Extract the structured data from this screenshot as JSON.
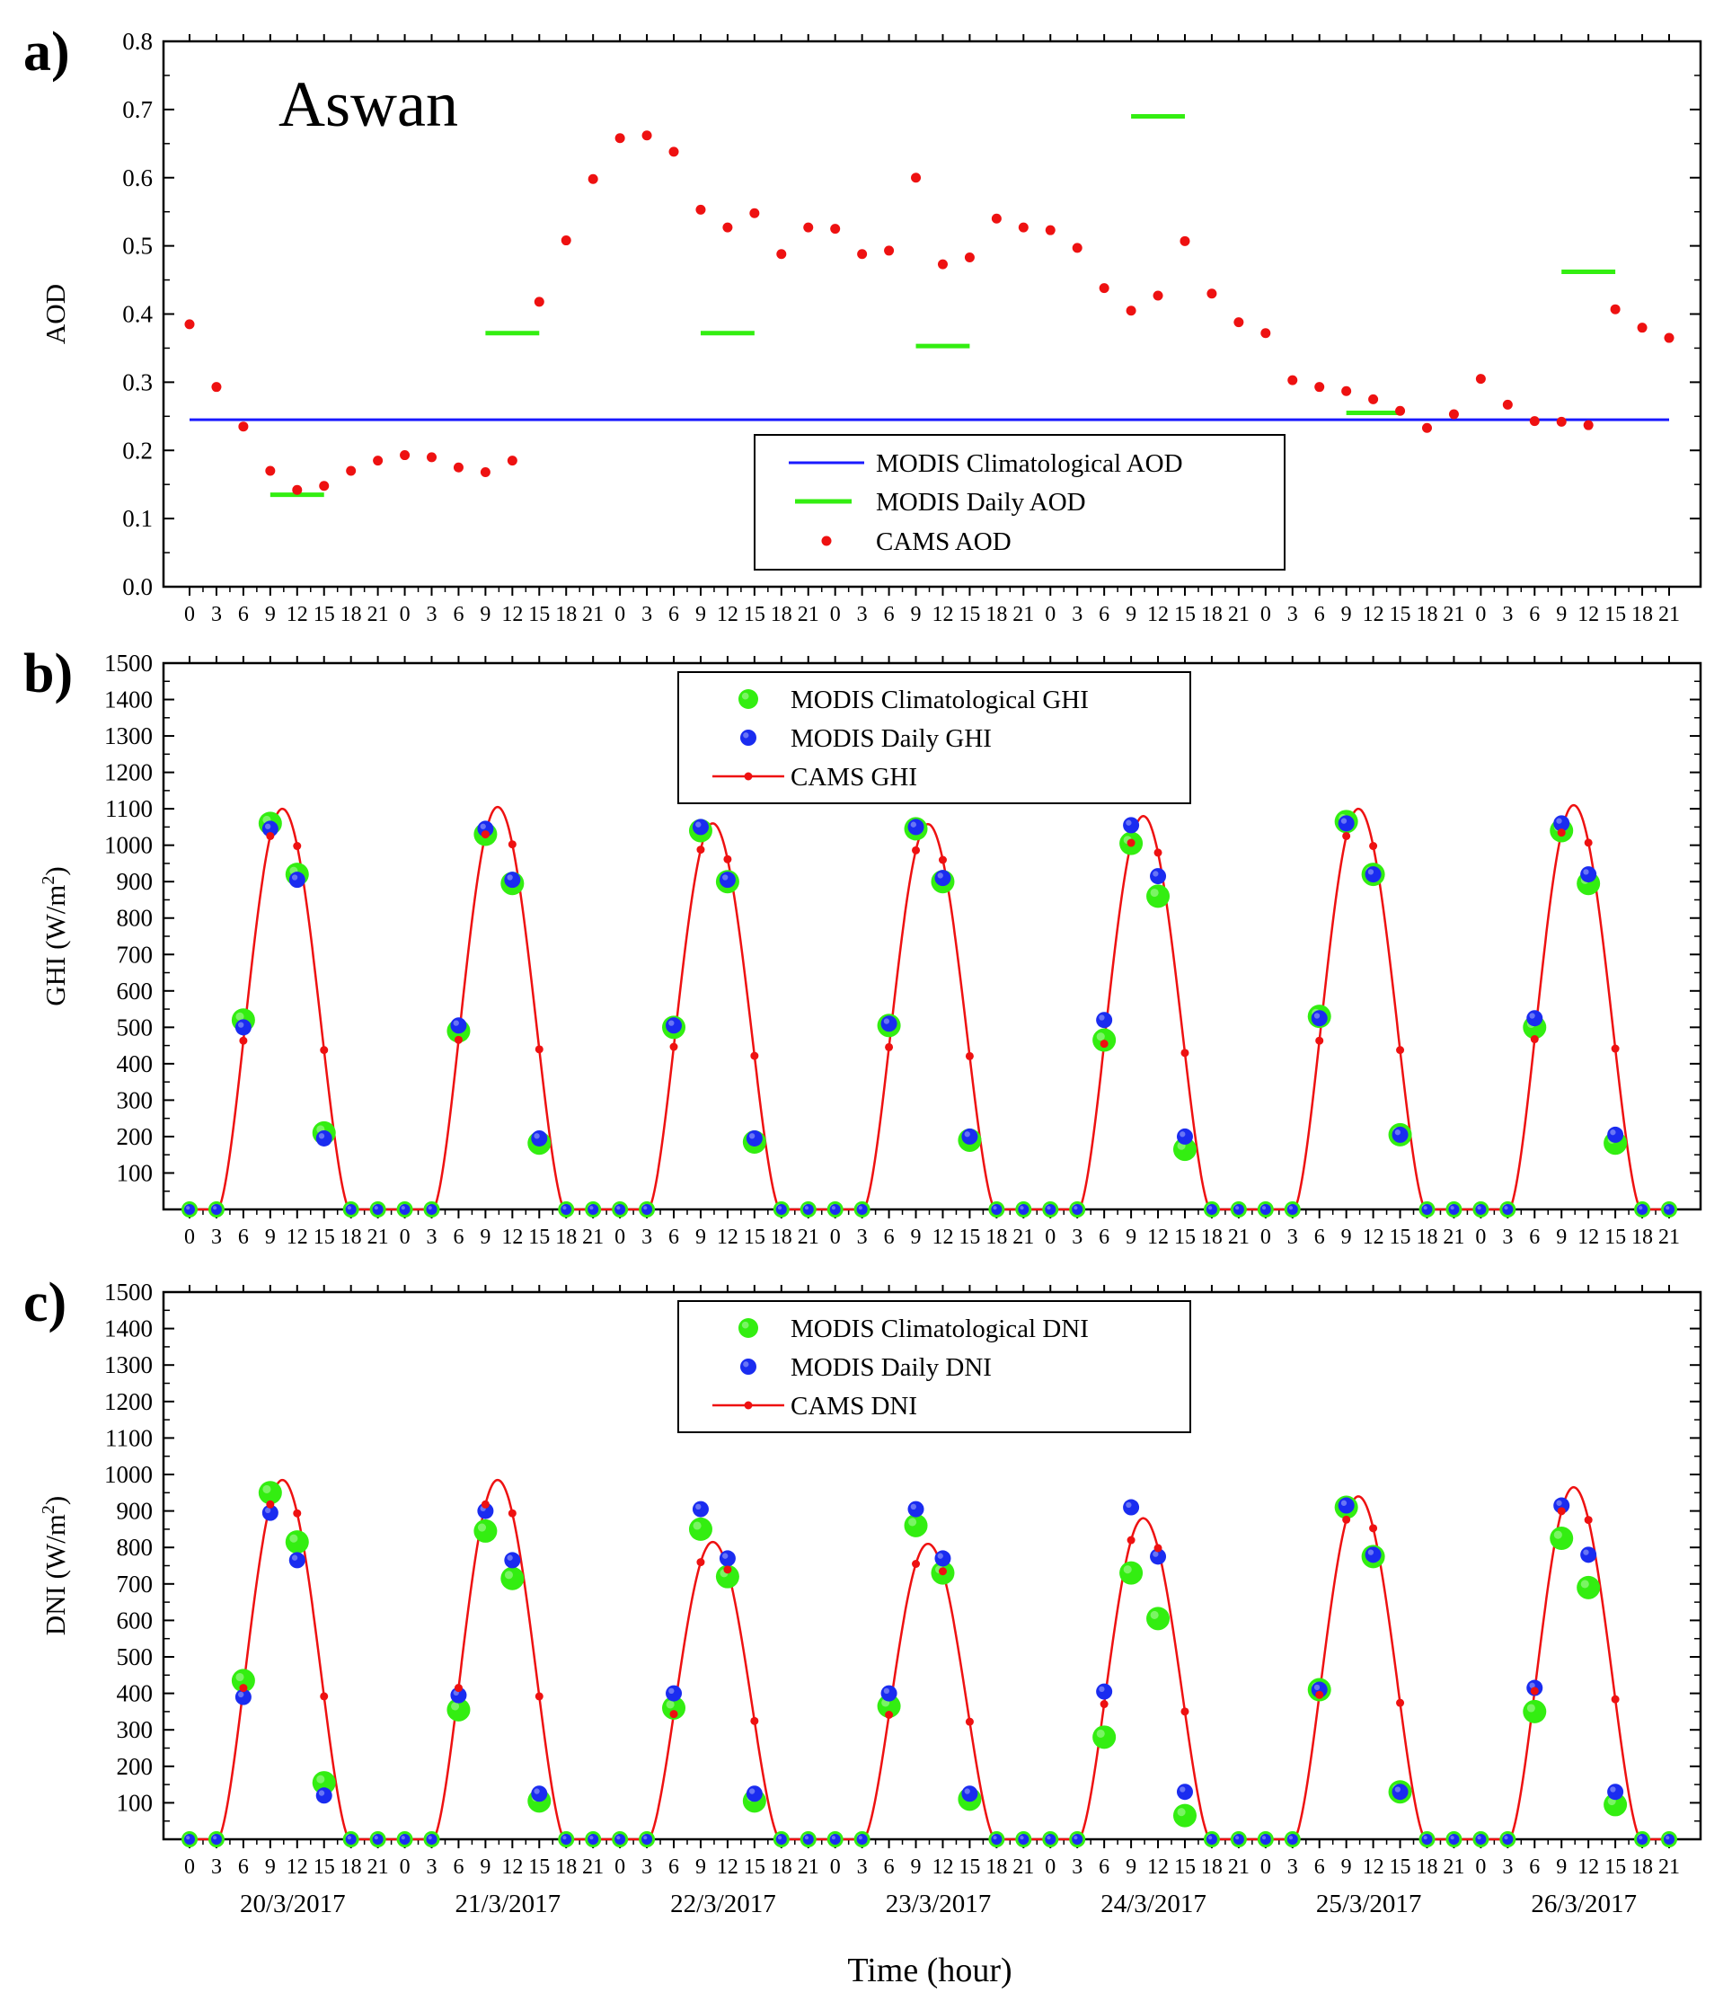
{
  "figure": {
    "xlabel": "Time (hour)",
    "hour_ticks": [
      "0",
      "3",
      "6",
      "9",
      "12",
      "15",
      "18",
      "21"
    ],
    "dates": [
      "20/3/2017",
      "21/3/2017",
      "22/3/2017",
      "23/3/2017",
      "24/3/2017",
      "25/3/2017",
      "26/3/2017"
    ]
  },
  "colors": {
    "climatological_line": "#1a1aff",
    "daily_green": "#33ee11",
    "cams_red": "#ee1111",
    "blue_marker": "#1a2cf0"
  },
  "chart_data": [
    {
      "id": "a",
      "panel_label": "a)",
      "type": "scatter",
      "title": "Aswan",
      "ylabel": "AOD",
      "ylim": [
        0,
        0.8
      ],
      "yticks": [
        "0.0",
        "0.1",
        "0.2",
        "0.3",
        "0.4",
        "0.5",
        "0.6",
        "0.7",
        "0.8"
      ],
      "x_index_range": [
        0,
        55
      ],
      "legend": {
        "placement": "center-bottom",
        "entries": [
          "MODIS Climatological AOD",
          "MODIS Daily AOD",
          "CAMS AOD"
        ]
      },
      "climatological_aod": 0.245,
      "daily_aod": [
        {
          "day_label": "20/3/2017",
          "value": 0.135
        },
        {
          "day_label": "21/3/2017",
          "value": 0.372
        },
        {
          "day_label": "22/3/2017",
          "value": 0.372
        },
        {
          "day_label": "23/3/2017",
          "value": 0.353
        },
        {
          "day_label": "24/3/2017",
          "value": 0.69
        },
        {
          "day_label": "25/3/2017",
          "value": 0.255
        },
        {
          "day_label": "26/3/2017",
          "value": 0.462
        }
      ],
      "cams_aod": [
        0.385,
        0.293,
        0.235,
        0.17,
        0.142,
        0.148,
        0.17,
        0.185,
        0.193,
        0.19,
        0.175,
        0.168,
        0.185,
        0.418,
        0.508,
        0.598,
        0.658,
        0.662,
        0.638,
        0.553,
        0.527,
        0.548,
        0.488,
        0.527,
        0.525,
        0.488,
        0.493,
        0.6,
        0.473,
        0.483,
        0.54,
        0.527,
        0.523,
        0.497,
        0.438,
        0.405,
        0.427,
        0.507,
        0.43,
        0.388,
        0.372,
        0.303,
        0.293,
        0.287,
        0.275,
        0.258,
        0.233,
        0.253,
        0.305,
        0.267,
        0.243,
        0.242,
        0.237,
        0.407,
        0.38,
        0.365
      ]
    },
    {
      "id": "b",
      "panel_label": "b)",
      "type": "line",
      "ylabel": "GHI (W/m²)",
      "ylim": [
        0,
        1500
      ],
      "yticks": [
        "100",
        "200",
        "300",
        "400",
        "500",
        "600",
        "700",
        "800",
        "900",
        "1000",
        "1100",
        "1200",
        "1300",
        "1400",
        "1500"
      ],
      "legend": {
        "placement": "top-center",
        "entries": [
          "MODIS Climatological GHI",
          "MODIS Daily GHI",
          "CAMS GHI"
        ]
      },
      "daily_peaks": [
        1100,
        1105,
        1060,
        1058,
        1080,
        1100,
        1110
      ],
      "climatological": [
        [
          520,
          1060,
          920,
          210
        ],
        [
          490,
          1030,
          895,
          182
        ],
        [
          500,
          1040,
          900,
          185
        ],
        [
          505,
          1045,
          900,
          190
        ],
        [
          465,
          1005,
          860,
          165
        ],
        [
          530,
          1065,
          920,
          205
        ],
        [
          500,
          1040,
          895,
          182
        ]
      ],
      "daily": [
        [
          500,
          1045,
          905,
          195
        ],
        [
          505,
          1045,
          905,
          195
        ],
        [
          505,
          1050,
          905,
          195
        ],
        [
          510,
          1050,
          910,
          200
        ],
        [
          520,
          1055,
          915,
          200
        ],
        [
          525,
          1060,
          920,
          205
        ],
        [
          525,
          1060,
          920,
          205
        ]
      ]
    },
    {
      "id": "c",
      "panel_label": "c)",
      "type": "line",
      "ylabel": "DNI (W/m²)",
      "ylim": [
        0,
        1500
      ],
      "yticks": [
        "100",
        "200",
        "300",
        "400",
        "500",
        "600",
        "700",
        "800",
        "900",
        "1000",
        "1100",
        "1200",
        "1300",
        "1400",
        "1500"
      ],
      "legend": {
        "placement": "top-center",
        "entries": [
          "MODIS Climatological DNI",
          "MODIS Daily DNI",
          "CAMS DNI"
        ]
      },
      "daily_peaks": [
        985,
        985,
        815,
        810,
        880,
        940,
        965
      ],
      "climatological": [
        [
          435,
          950,
          815,
          155
        ],
        [
          355,
          845,
          715,
          105
        ],
        [
          360,
          850,
          720,
          105
        ],
        [
          365,
          860,
          730,
          110
        ],
        [
          280,
          730,
          605,
          65
        ],
        [
          410,
          910,
          775,
          130
        ],
        [
          350,
          825,
          690,
          95
        ]
      ],
      "daily": [
        [
          390,
          895,
          765,
          120
        ],
        [
          395,
          900,
          765,
          125
        ],
        [
          400,
          905,
          770,
          125
        ],
        [
          400,
          905,
          770,
          125
        ],
        [
          405,
          910,
          775,
          130
        ],
        [
          410,
          915,
          780,
          130
        ],
        [
          415,
          915,
          780,
          130
        ]
      ]
    }
  ]
}
